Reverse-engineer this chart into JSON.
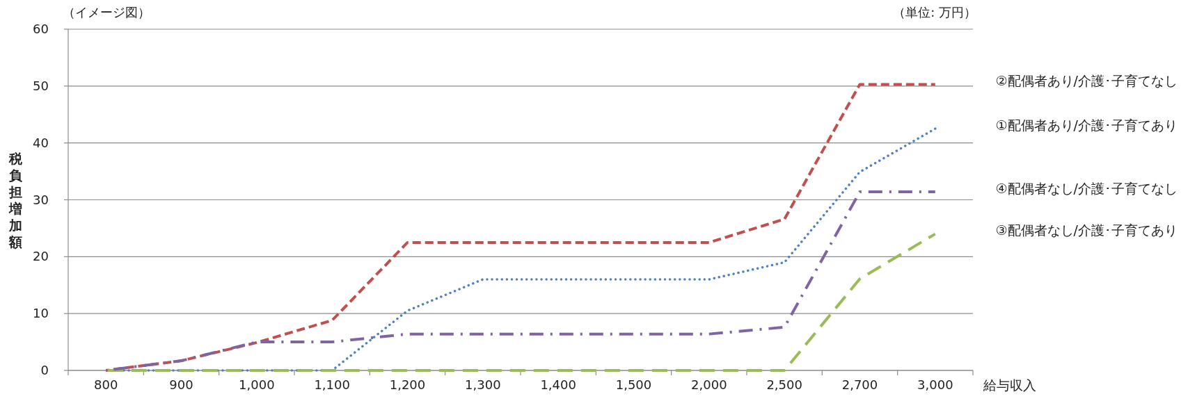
{
  "chart_data": {
    "type": "line",
    "annotations": [
      "（イメージ図）",
      "（単位: 万円）"
    ],
    "xlabel": "給与収入",
    "ylabel": "税負担増加額",
    "categories": [
      "800",
      "900",
      "1,000",
      "1,100",
      "1,200",
      "1,300",
      "1,400",
      "1,500",
      "2,000",
      "2,500",
      "2,700",
      "3,000"
    ],
    "series": [
      {
        "name": "①配偶者あり/介護･子育てあり",
        "color": "#4f81bd",
        "line_style": "dotted",
        "values": [
          0,
          0,
          0,
          0,
          10.5,
          16.0,
          16.0,
          16.0,
          16.0,
          19.0,
          34.9,
          42.5
        ]
      },
      {
        "name": "②配偶者あり/介護･子育てなし",
        "color": "#c0504d",
        "line_style": "dashed",
        "values": [
          0,
          1.7,
          4.9,
          8.8,
          22.5,
          22.5,
          22.5,
          22.5,
          22.5,
          26.6,
          50.3,
          50.3
        ]
      },
      {
        "name": "③配偶者なし/介護･子育てあり",
        "color": "#9bbb59",
        "line_style": "longdash",
        "values": [
          0,
          0,
          0,
          0,
          0,
          0,
          0,
          0,
          0,
          0,
          16.1,
          24.0
        ]
      },
      {
        "name": "④配偶者なし/介護･子育てなし",
        "color": "#8064a2",
        "line_style": "dashdot",
        "values": [
          0,
          1.7,
          5.0,
          5.0,
          6.4,
          6.4,
          6.4,
          6.4,
          6.4,
          7.6,
          31.4,
          31.4
        ]
      }
    ],
    "ylim": [
      0,
      60
    ],
    "yticks": [
      0,
      10,
      20,
      30,
      40,
      50,
      60
    ],
    "grid": "y",
    "marker": "none"
  }
}
